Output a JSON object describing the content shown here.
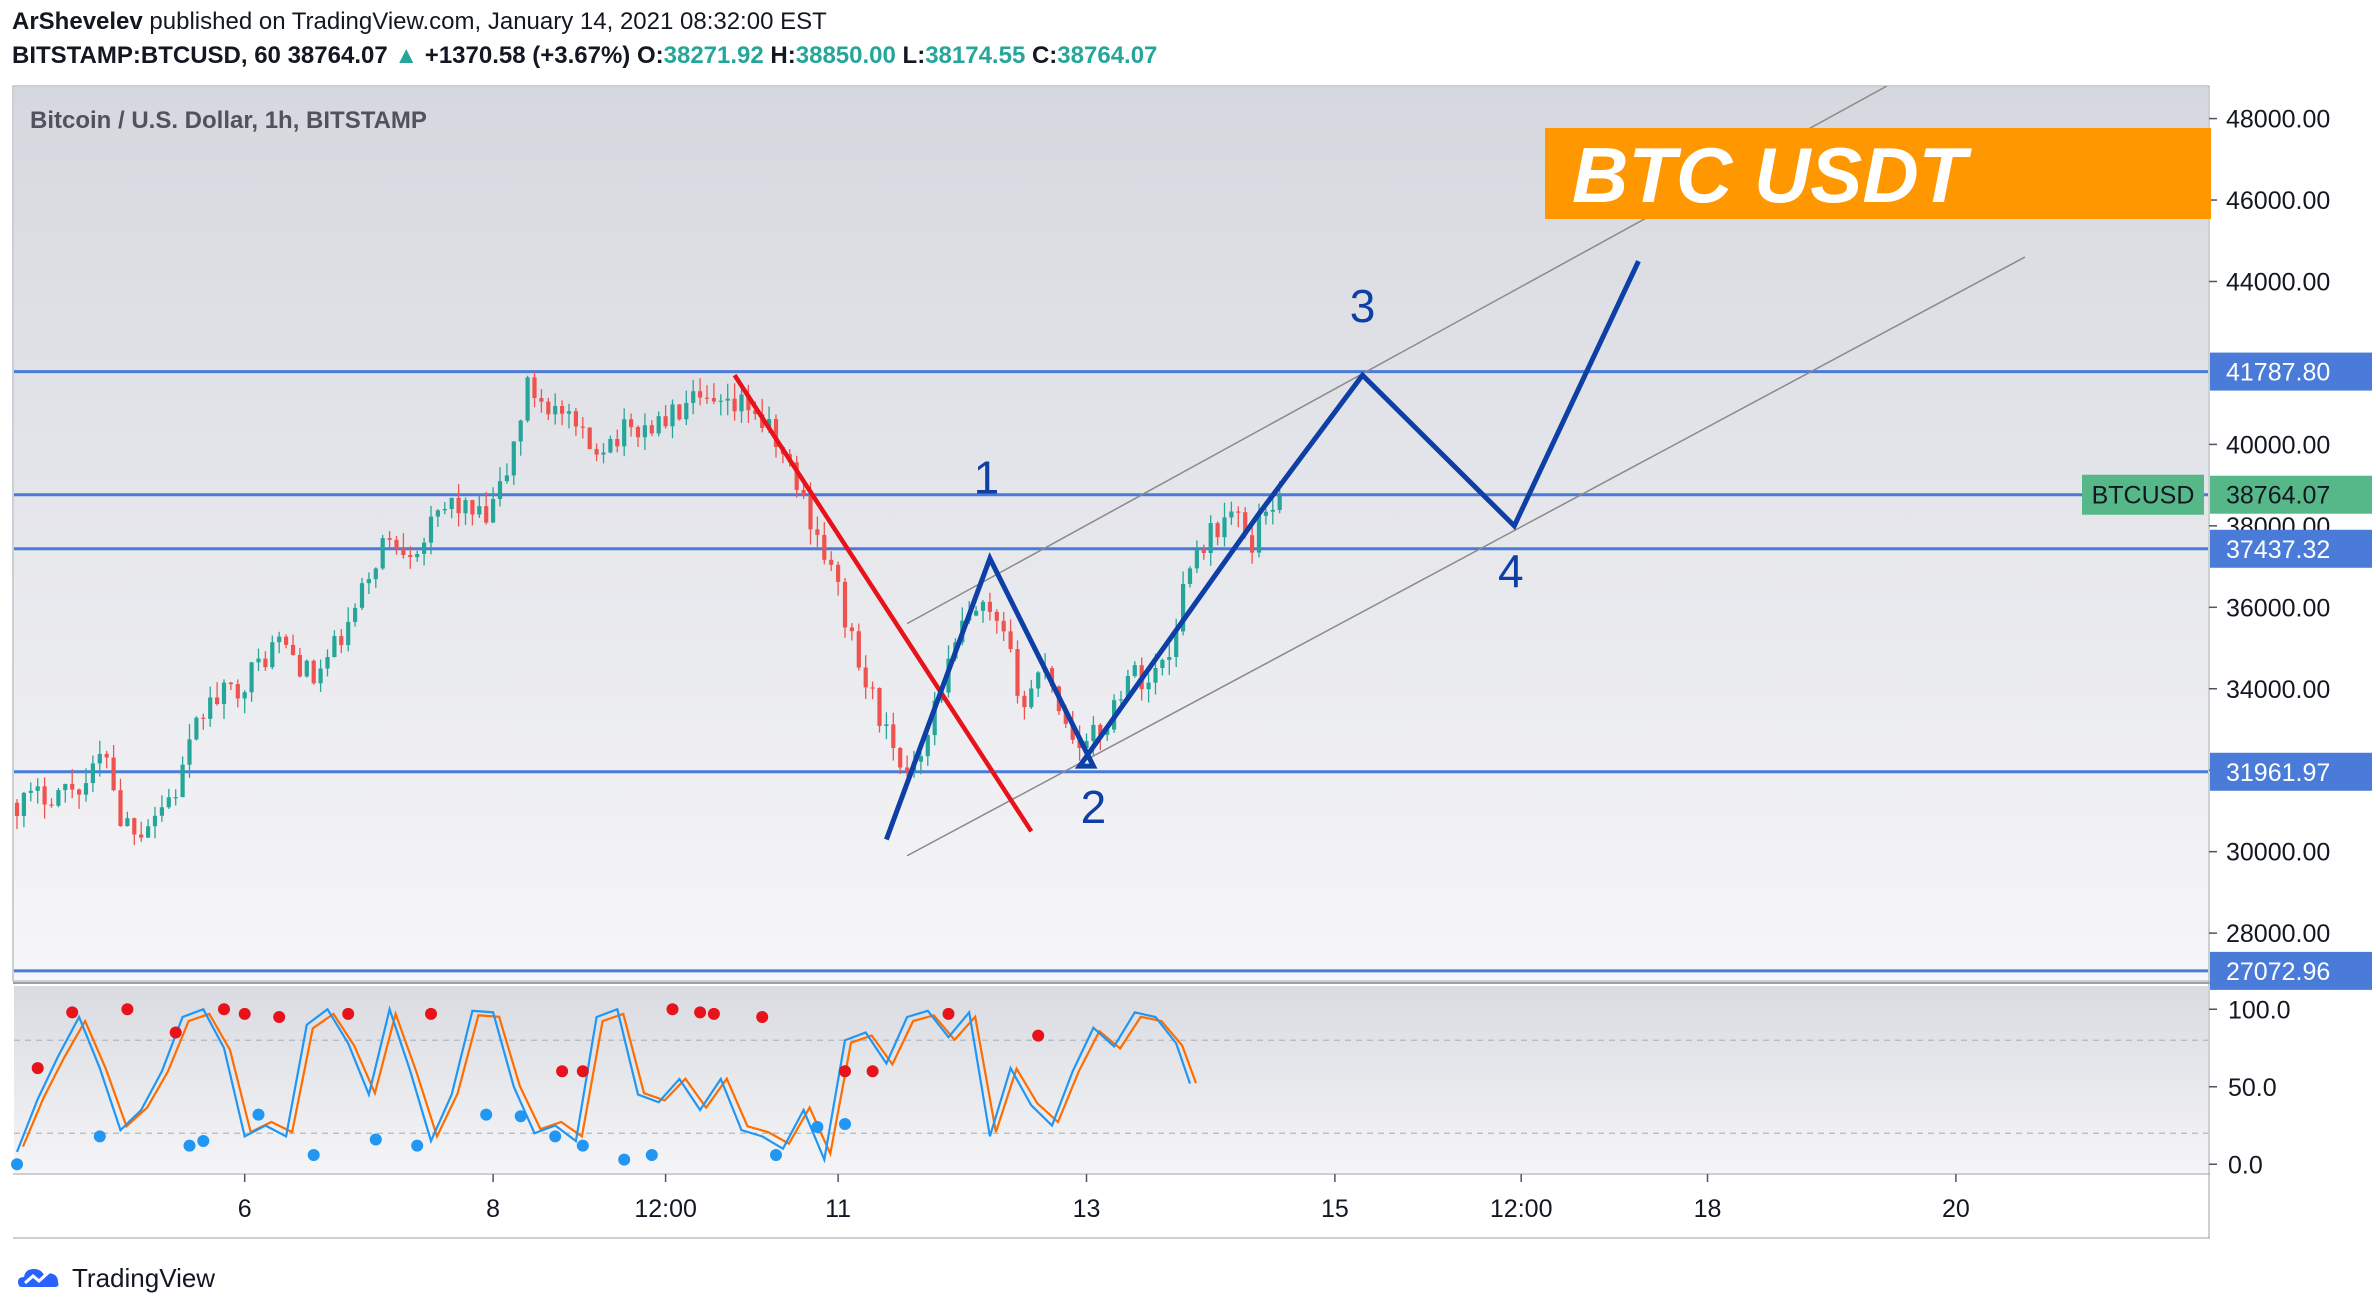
{
  "header": {
    "author": "ArShevelev",
    "published_text": "published on TradingView.com, January 14, 2021 08:32:00 EST",
    "symbol_interval": "BITSTAMP:BTCUSD, 60",
    "last_price": "38764.07",
    "up_arrow": "▲",
    "change": "+1370.58 (+3.67%)",
    "open_label": "O:",
    "open": "38271.92",
    "high_label": "H:",
    "high": "38850.00",
    "low_label": "L:",
    "low": "38174.55",
    "close_label": "C:",
    "close": "38764.07"
  },
  "footer": {
    "brand": "TradingView"
  },
  "colors": {
    "up": "#26a69a",
    "down": "#ef5350",
    "hline": "#4a7bd8",
    "wave": "#0d3fa6",
    "trend": "#e8121b",
    "channel": "#8a8a8a",
    "banner": "#ff9800",
    "stoch_k": "#2196f3",
    "stoch_d": "#ff6d00",
    "tag": "#56b889"
  },
  "chart_data": {
    "type": "candlestick",
    "title": "Bitcoin / U.S. Dollar, 1h, BITSTAMP",
    "ylim": [
      26800,
      48800
    ],
    "y_ticks": [
      28000,
      30000,
      32000,
      34000,
      36000,
      38000,
      40000,
      44000,
      46000,
      48000
    ],
    "y_tick_labels": [
      "28000.00",
      "30000.00",
      "32000.00",
      "34000.00",
      "36000.00",
      "38000.00",
      "40000.00",
      "44000.00",
      "46000.00",
      "48000.00"
    ],
    "x_tick_labels": [
      "6",
      "8",
      "12:00",
      "11",
      "13",
      "15",
      "12:00",
      "18",
      "20"
    ],
    "x_tick_index": [
      33,
      69,
      94,
      119,
      155,
      191,
      218,
      245,
      281
    ],
    "last_index": 183,
    "price_path": [
      [
        0,
        31200
      ],
      [
        10,
        31700
      ],
      [
        13,
        32500
      ],
      [
        15,
        30800
      ],
      [
        18,
        30600
      ],
      [
        23,
        31500
      ],
      [
        27,
        33500
      ],
      [
        33,
        34200
      ],
      [
        38,
        35200
      ],
      [
        43,
        34200
      ],
      [
        48,
        35500
      ],
      [
        53,
        37600
      ],
      [
        58,
        37500
      ],
      [
        63,
        38600
      ],
      [
        68,
        38100
      ],
      [
        71,
        39300
      ],
      [
        74,
        41400
      ],
      [
        79,
        40700
      ],
      [
        83,
        39900
      ],
      [
        88,
        40300
      ],
      [
        93,
        40500
      ],
      [
        98,
        41000
      ],
      [
        103,
        40800
      ],
      [
        106,
        41000
      ],
      [
        109,
        40300
      ],
      [
        112,
        39400
      ],
      [
        116,
        37800
      ],
      [
        119,
        36400
      ],
      [
        122,
        34500
      ],
      [
        125,
        33400
      ],
      [
        128,
        31800
      ],
      [
        131,
        32600
      ],
      [
        134,
        34100
      ],
      [
        137,
        35500
      ],
      [
        140,
        35900
      ],
      [
        143,
        35200
      ],
      [
        146,
        33600
      ],
      [
        149,
        34700
      ],
      [
        152,
        33100
      ],
      [
        155,
        32600
      ],
      [
        158,
        33200
      ],
      [
        161,
        34400
      ],
      [
        164,
        34200
      ],
      [
        167,
        34900
      ],
      [
        170,
        37200
      ],
      [
        173,
        37800
      ],
      [
        176,
        38300
      ],
      [
        179,
        37600
      ],
      [
        181,
        38500
      ],
      [
        183,
        38764
      ]
    ],
    "hlines": [
      {
        "value": 41787.8,
        "label": "41787.80"
      },
      {
        "value": 38764.07,
        "label": "38764.07",
        "tag": "BTCUSD"
      },
      {
        "value": 37437.32,
        "label": "37437.32"
      },
      {
        "value": 31961.97,
        "label": "31961.97"
      },
      {
        "value": 27072.96,
        "label": "27072.96"
      }
    ],
    "trendline": [
      [
        104,
        41700
      ],
      [
        147,
        30500
      ]
    ],
    "channel_lines": [
      [
        [
          129,
          35600
        ],
        [
          271,
          48800
        ]
      ],
      [
        [
          129,
          29900
        ],
        [
          291,
          44600
        ]
      ]
    ],
    "wave_path": [
      [
        126,
        30300
      ],
      [
        141,
        37200
      ],
      [
        156,
        32100
      ],
      [
        154,
        32100
      ],
      [
        180,
        38300
      ],
      [
        195,
        41700
      ],
      [
        217,
        38000
      ],
      [
        235,
        44500
      ]
    ],
    "wave_labels": [
      {
        "text": "1",
        "x": 140.5,
        "y": 38800
      },
      {
        "text": "2",
        "x": 156,
        "y": 30700
      },
      {
        "text": "3",
        "x": 195,
        "y": 43000
      },
      {
        "text": "4",
        "x": 216.5,
        "y": 36500
      }
    ],
    "banner": "BTC USDT",
    "stochastic": {
      "ylim": [
        -5,
        115
      ],
      "y_ticks": [
        0,
        50,
        100
      ],
      "y_tick_labels": [
        "0.0",
        "50.0",
        "100.0"
      ],
      "bands": [
        20,
        80
      ],
      "k_path": [
        [
          0,
          8
        ],
        [
          3,
          42
        ],
        [
          6,
          70
        ],
        [
          9,
          95
        ],
        [
          12,
          62
        ],
        [
          15,
          22
        ],
        [
          18,
          35
        ],
        [
          21,
          60
        ],
        [
          24,
          95
        ],
        [
          27,
          100
        ],
        [
          30,
          75
        ],
        [
          33,
          18
        ],
        [
          36,
          25
        ],
        [
          39,
          18
        ],
        [
          42,
          90
        ],
        [
          45,
          100
        ],
        [
          48,
          78
        ],
        [
          51,
          45
        ],
        [
          54,
          100
        ],
        [
          57,
          60
        ],
        [
          60,
          15
        ],
        [
          63,
          45
        ],
        [
          66,
          99
        ],
        [
          69,
          98
        ],
        [
          72,
          50
        ],
        [
          75,
          20
        ],
        [
          78,
          25
        ],
        [
          81,
          15
        ],
        [
          84,
          95
        ],
        [
          87,
          100
        ],
        [
          90,
          45
        ],
        [
          93,
          40
        ],
        [
          96,
          55
        ],
        [
          99,
          35
        ],
        [
          102,
          55
        ],
        [
          105,
          22
        ],
        [
          108,
          18
        ],
        [
          111,
          10
        ],
        [
          114,
          35
        ],
        [
          117,
          3
        ],
        [
          120,
          80
        ],
        [
          123,
          85
        ],
        [
          126,
          65
        ],
        [
          129,
          95
        ],
        [
          132,
          99
        ],
        [
          135,
          82
        ],
        [
          138,
          98
        ],
        [
          141,
          18
        ],
        [
          144,
          62
        ],
        [
          147,
          38
        ],
        [
          150,
          25
        ],
        [
          153,
          60
        ],
        [
          156,
          88
        ],
        [
          159,
          76
        ],
        [
          162,
          98
        ],
        [
          165,
          95
        ],
        [
          168,
          78
        ],
        [
          170,
          52
        ]
      ],
      "ob_markers": [
        [
          3,
          62
        ],
        [
          8,
          98
        ],
        [
          16,
          100
        ],
        [
          23,
          85
        ],
        [
          30,
          100
        ],
        [
          33,
          97
        ],
        [
          38,
          95
        ],
        [
          48,
          97
        ],
        [
          60,
          97
        ],
        [
          79,
          60
        ],
        [
          82,
          60
        ],
        [
          95,
          100
        ],
        [
          99,
          98
        ],
        [
          101,
          97
        ],
        [
          108,
          95
        ],
        [
          120,
          60
        ],
        [
          124,
          60
        ],
        [
          135,
          97
        ],
        [
          148,
          83
        ]
      ],
      "os_markers": [
        [
          0,
          0
        ],
        [
          12,
          18
        ],
        [
          25,
          12
        ],
        [
          27,
          15
        ],
        [
          35,
          32
        ],
        [
          43,
          6
        ],
        [
          52,
          16
        ],
        [
          58,
          12
        ],
        [
          68,
          32
        ],
        [
          73,
          31
        ],
        [
          78,
          18
        ],
        [
          82,
          12
        ],
        [
          88,
          3
        ],
        [
          92,
          6
        ],
        [
          110,
          6
        ],
        [
          116,
          24
        ],
        [
          120,
          26
        ]
      ]
    }
  }
}
